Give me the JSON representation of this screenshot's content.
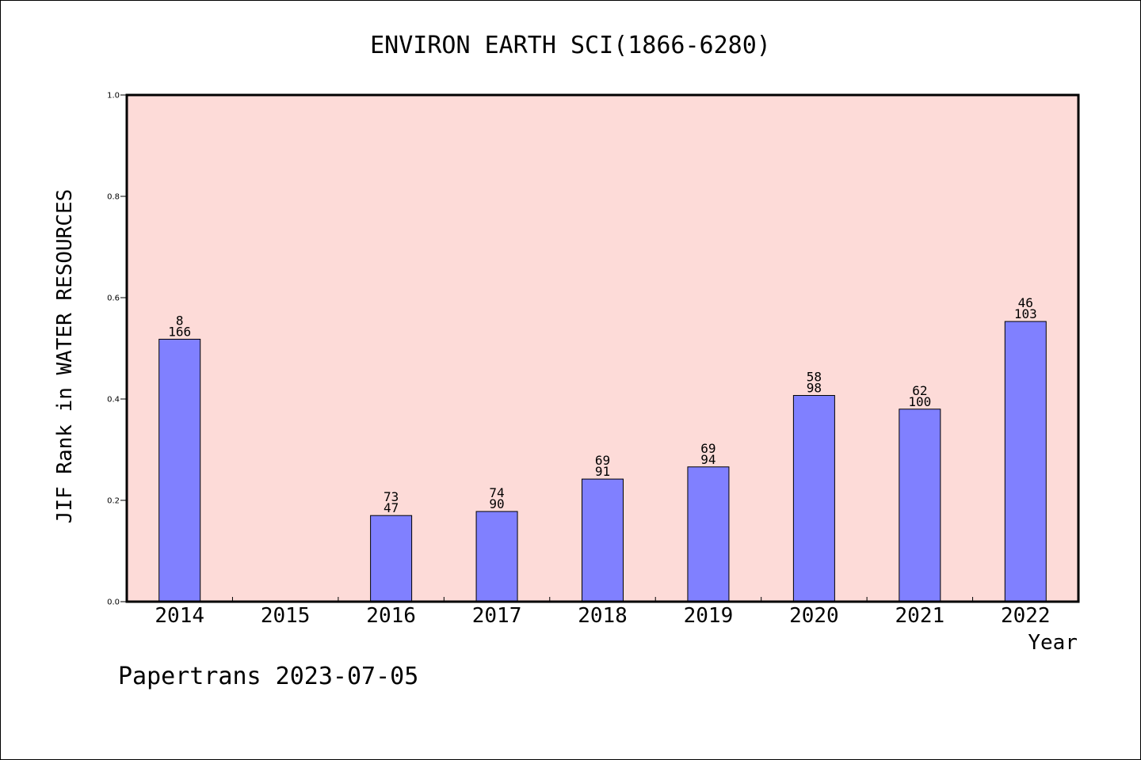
{
  "footer": {
    "text": "Papertrans 2023-07-05"
  },
  "colors": {
    "plot_background": "#fddbd8",
    "bar_fill": "#8080ff",
    "bar_stroke": "#000000"
  },
  "chart_data": {
    "type": "bar",
    "title": "ENVIRON EARTH SCI(1866-6280)",
    "xlabel": "Year",
    "ylabel": "JIF Rank in WATER RESOURCES",
    "ylim": [
      0,
      1.0
    ],
    "yticks": [
      "0.0",
      "0.2",
      "0.4",
      "0.6",
      "0.8",
      "1.0"
    ],
    "grid": false,
    "categories": [
      "2014",
      "2015",
      "2016",
      "2017",
      "2018",
      "2019",
      "2020",
      "2021",
      "2022"
    ],
    "values": [
      0.518,
      null,
      0.17,
      0.178,
      0.242,
      0.266,
      0.407,
      0.38,
      0.553
    ],
    "labels_top": [
      "8",
      "",
      "73",
      "74",
      "69",
      "69",
      "58",
      "62",
      "46"
    ],
    "labels_bottom": [
      "166",
      "",
      "47",
      "90",
      "91",
      "94",
      "98",
      "100",
      "103"
    ]
  }
}
